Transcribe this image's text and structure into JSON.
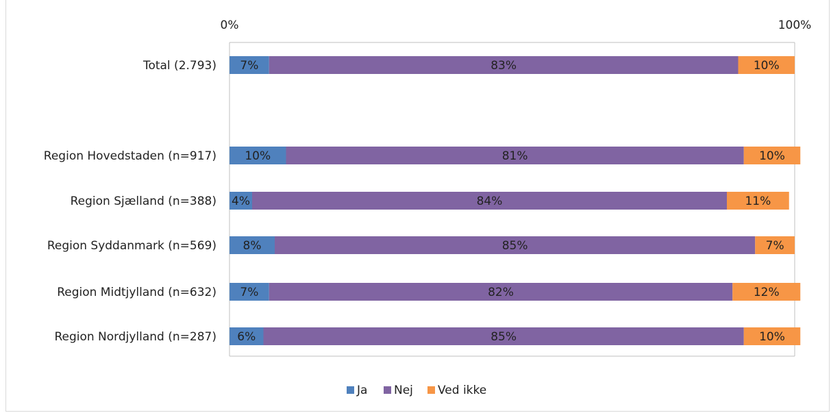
{
  "chart_data": {
    "type": "bar",
    "orientation": "horizontal",
    "stacked": "percent",
    "xlim": [
      0,
      100
    ],
    "x_ticks": [
      "0%",
      "100%"
    ],
    "grid": false,
    "legend_position": "bottom",
    "categories": [
      "Total (2.793)",
      "",
      "Region Hovedstaden (n=917)",
      "Region Sjælland (n=388)",
      "Region Syddanmark (n=569)",
      "Region Midtjylland (n=632)",
      "Region Nordjylland (n=287)"
    ],
    "series": [
      {
        "name": "Ja",
        "color": "#4f81bd",
        "values": [
          7,
          null,
          10,
          4,
          8,
          7,
          6
        ],
        "labels": [
          "7%",
          "",
          "10%",
          "4%",
          "8%",
          "7%",
          "6%"
        ]
      },
      {
        "name": "Nej",
        "color": "#8064a2",
        "values": [
          83,
          null,
          81,
          84,
          85,
          82,
          85
        ],
        "labels": [
          "83%",
          "",
          "81%",
          "84%",
          "85%",
          "82%",
          "85%"
        ]
      },
      {
        "name": "Ved ikke",
        "color": "#f79646",
        "values": [
          10,
          null,
          10,
          11,
          7,
          12,
          10
        ],
        "labels": [
          "10%",
          "",
          "10%",
          "11%",
          "7%",
          "12%",
          "10%"
        ]
      }
    ]
  }
}
